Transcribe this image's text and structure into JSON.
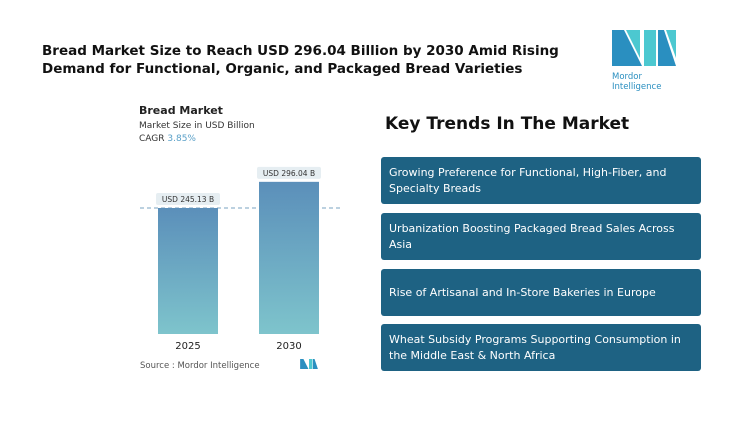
{
  "title": "Bread Market Size to Reach USD 296.04 Billion by 2030 Amid Rising Demand for Functional, Organic, and Packaged Bread Varieties",
  "logo": {
    "text": "Mordor Intelligence"
  },
  "chart_data": {
    "type": "bar",
    "title": "Bread Market",
    "subtitle": "Market Size in USD Billion",
    "cagr_label": "CAGR",
    "cagr_value": "3.85%",
    "categories": [
      "2025",
      "2030"
    ],
    "values": [
      245.13,
      296.04
    ],
    "data_labels": [
      "USD 245.13 B",
      "USD 296.04 B"
    ],
    "colors": {
      "top": "#5b8fba",
      "bottom": "#7ec4cc"
    },
    "reference_line": "dashed at 2025 value"
  },
  "source": "Source :  Mordor Intelligence",
  "key_trends": {
    "heading": "Key Trends In The Market",
    "items": [
      "Growing Preference for Functional, High-Fiber, and Specialty Breads",
      "Urbanization Boosting Packaged Bread Sales Across Asia",
      "Rise of Artisanal and In-Store Bakeries in Europe",
      "Wheat Subsidy Programs Supporting Consumption in the Middle East & North Africa"
    ],
    "box_color": "#1e6283"
  }
}
